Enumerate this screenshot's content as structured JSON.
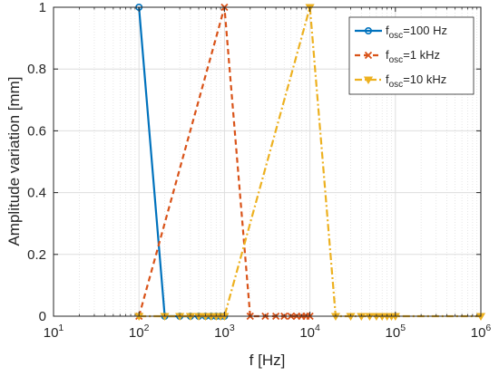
{
  "chart_data": {
    "type": "line",
    "title": "",
    "xlabel": "f [Hz]",
    "ylabel": "Amplitude variation [mm]",
    "xscale": "log",
    "xlim": [
      10,
      1000000
    ],
    "ylim": [
      0,
      1
    ],
    "grid": true,
    "minor_grid": true,
    "legend_position": "top-right",
    "x_tick_labels": [
      {
        "base": "10",
        "exp": "1"
      },
      {
        "base": "10",
        "exp": "2"
      },
      {
        "base": "10",
        "exp": "3"
      },
      {
        "base": "10",
        "exp": "4"
      },
      {
        "base": "10",
        "exp": "5"
      },
      {
        "base": "10",
        "exp": "6"
      }
    ],
    "y_tick_labels": [
      "0",
      "0.2",
      "0.4",
      "0.6",
      "0.8",
      "1"
    ],
    "series": [
      {
        "legend": {
          "prefix": "f",
          "sub": "osc",
          "suffix": "=100 Hz"
        },
        "color": "#0072BD",
        "linestyle": "solid",
        "marker": "circle",
        "x": [
          100,
          200,
          300,
          400,
          500,
          600,
          700,
          800,
          900,
          1000
        ],
        "y": [
          1,
          0,
          0,
          0,
          0,
          0,
          0,
          0,
          0,
          0
        ]
      },
      {
        "legend": {
          "prefix": "f",
          "sub": "osc",
          "suffix": "=1 kHz"
        },
        "color": "#D95319",
        "linestyle": "dashed",
        "marker": "x",
        "x": [
          100,
          1000,
          2000,
          3000,
          4000,
          5000,
          6000,
          7000,
          8000,
          9000,
          10000
        ],
        "y": [
          0,
          1,
          0,
          0,
          0,
          0,
          0,
          0,
          0,
          0,
          0
        ]
      },
      {
        "legend": {
          "prefix": "f",
          "sub": "osc",
          "suffix": "=10 kHz"
        },
        "color": "#EDB120",
        "linestyle": "dashdot",
        "marker": "triangle-down",
        "x": [
          100,
          200,
          300,
          400,
          500,
          600,
          700,
          800,
          900,
          1000,
          10000,
          20000,
          30000,
          40000,
          50000,
          60000,
          70000,
          80000,
          90000,
          100000,
          1000000
        ],
        "y": [
          0,
          0,
          0,
          0,
          0,
          0,
          0,
          0,
          0,
          0,
          1,
          0,
          0,
          0,
          0,
          0,
          0,
          0,
          0,
          0,
          0
        ]
      }
    ]
  }
}
